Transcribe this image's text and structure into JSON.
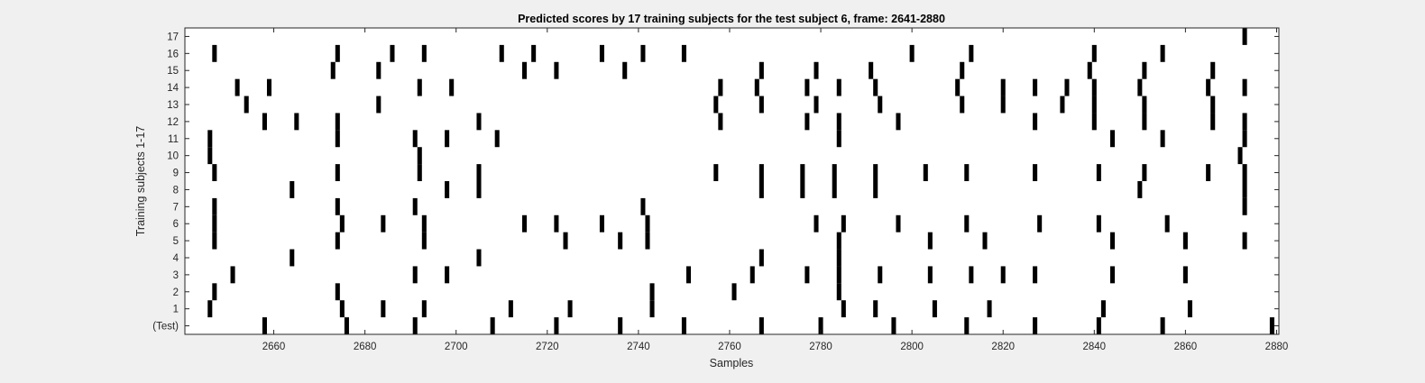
{
  "chart_data": {
    "type": "heatmap",
    "title": "Predicted scores by 17 training subjects for the test subject 6, frame: 2641-2880",
    "xlabel": "Samples",
    "ylabel": "Training subjects 1-17",
    "xlim": [
      2641,
      2880
    ],
    "x_ticks": [
      2660,
      2680,
      2700,
      2720,
      2740,
      2760,
      2780,
      2800,
      2820,
      2840,
      2860,
      2880
    ],
    "rows": [
      "(Test)",
      "1",
      "2",
      "3",
      "4",
      "5",
      "6",
      "7",
      "8",
      "9",
      "10",
      "11",
      "12",
      "13",
      "14",
      "15",
      "16",
      "17"
    ],
    "value_colors": {
      "0": "#ffffff",
      "1": "#000000"
    },
    "grid": false,
    "legend": "none",
    "marks": [
      {
        "row": "(Test)",
        "x": [
          2658,
          2676,
          2691,
          2708,
          2722,
          2736,
          2750,
          2767,
          2780,
          2796,
          2812,
          2827,
          2841,
          2855,
          2879
        ]
      },
      {
        "row": "1",
        "x": [
          2646,
          2675,
          2684,
          2693,
          2712,
          2725,
          2743,
          2785,
          2792,
          2805,
          2817,
          2842,
          2861
        ]
      },
      {
        "row": "2",
        "x": [
          2647,
          2674,
          2743,
          2761,
          2784
        ]
      },
      {
        "row": "3",
        "x": [
          2651,
          2691,
          2698,
          2751,
          2765,
          2777,
          2784,
          2793,
          2804,
          2813,
          2820,
          2827,
          2844,
          2860
        ]
      },
      {
        "row": "4",
        "x": [
          2664,
          2705,
          2767,
          2784
        ]
      },
      {
        "row": "5",
        "x": [
          2647,
          2674,
          2693,
          2724,
          2736,
          2742,
          2784,
          2804,
          2816,
          2844,
          2860,
          2873
        ]
      },
      {
        "row": "6",
        "x": [
          2647,
          2675,
          2684,
          2693,
          2715,
          2722,
          2732,
          2742,
          2779,
          2785,
          2797,
          2812,
          2828,
          2841,
          2856
        ]
      },
      {
        "row": "7",
        "x": [
          2647,
          2674,
          2691,
          2741,
          2873
        ]
      },
      {
        "row": "8",
        "x": [
          2664,
          2698,
          2705,
          2767,
          2776,
          2783,
          2792,
          2850,
          2873
        ]
      },
      {
        "row": "9",
        "x": [
          2647,
          2674,
          2692,
          2705,
          2757,
          2767,
          2776,
          2783,
          2792,
          2803,
          2812,
          2827,
          2841,
          2851,
          2865,
          2873
        ]
      },
      {
        "row": "10",
        "x": [
          2646,
          2692,
          2872
        ]
      },
      {
        "row": "11",
        "x": [
          2646,
          2674,
          2691,
          2698,
          2709,
          2784,
          2844,
          2855,
          2873
        ]
      },
      {
        "row": "12",
        "x": [
          2658,
          2665,
          2674,
          2705,
          2758,
          2777,
          2784,
          2797,
          2827,
          2840,
          2851,
          2866,
          2873
        ]
      },
      {
        "row": "13",
        "x": [
          2654,
          2683,
          2757,
          2767,
          2779,
          2793,
          2811,
          2820,
          2833,
          2840,
          2851,
          2866
        ]
      },
      {
        "row": "14",
        "x": [
          2652,
          2659,
          2692,
          2699,
          2758,
          2766,
          2777,
          2784,
          2792,
          2810,
          2820,
          2827,
          2834,
          2840,
          2850,
          2865,
          2873
        ]
      },
      {
        "row": "15",
        "x": [
          2673,
          2683,
          2715,
          2722,
          2737,
          2767,
          2779,
          2791,
          2811,
          2839,
          2851,
          2866
        ]
      },
      {
        "row": "16",
        "x": [
          2647,
          2674,
          2686,
          2693,
          2710,
          2717,
          2732,
          2741,
          2750,
          2800,
          2813,
          2840,
          2855
        ]
      },
      {
        "row": "17",
        "x": [
          2873
        ]
      }
    ]
  }
}
